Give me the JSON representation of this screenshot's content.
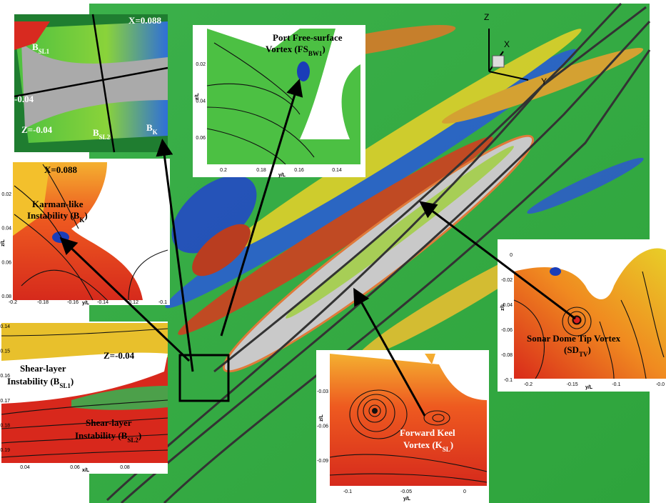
{
  "main": {
    "axes": {
      "z": "Z",
      "x": "X",
      "y": "Y"
    }
  },
  "top_left": {
    "labels": [
      "X=0.088",
      "-0.04",
      "Z=-0.04"
    ],
    "vortices": [
      {
        "text": "B",
        "sub": "SL1"
      },
      {
        "text": "B",
        "sub": "SL2"
      },
      {
        "text": "B",
        "sub": "K"
      }
    ]
  },
  "top_middle": {
    "title": "Port Free-surface",
    "vortex": {
      "text": "Vortex (FS",
      "sub": "BW1",
      "tail": ")"
    },
    "ylabel": "z/L",
    "xlabel": "y/L",
    "yticks": [
      "0.02",
      "0.04",
      "0.06"
    ],
    "xticks": [
      "0.2",
      "0.18",
      "0.16",
      "0.14"
    ]
  },
  "middle_left": {
    "section": "X=0.088",
    "title": "Karman-like",
    "vortex": {
      "text": "Instability (B",
      "sub": "K",
      "tail": ")"
    },
    "ylabel": "z/L",
    "xlabel": "y/L",
    "yticks": [
      "0.02",
      "0.04",
      "0.06",
      "0.08"
    ],
    "xticks": [
      "-0.2",
      "-0.18",
      "-0.16",
      "-0.14",
      "-0.12",
      "-0.1"
    ]
  },
  "bottom_left": {
    "section": "Z=-0.04",
    "title1": "Shear-layer",
    "vortex1": {
      "text": "Instability (B",
      "sub": "SL1",
      "tail": ")"
    },
    "title2": "Shear-layer",
    "vortex2": {
      "text": "Instability (B",
      "sub": "SL2",
      "tail": ")"
    },
    "xlabel": "x/L",
    "yticks": [
      "0.14",
      "0.15",
      "0.16",
      "0.17",
      "0.18",
      "0.19"
    ],
    "xticks": [
      "0.04",
      "0.06",
      "0.08"
    ]
  },
  "bottom_middle": {
    "title": "Forward Keel",
    "vortex": {
      "text": "Vortex (K",
      "sub": "SL",
      "tail": ")"
    },
    "ylabel": "z/L",
    "xlabel": "y/L",
    "yticks": [
      "-0.03",
      "-0.06",
      "-0.09"
    ],
    "xticks": [
      "-0.1",
      "-0.05",
      "0"
    ]
  },
  "right": {
    "title": "Sonar Dome Tip Vortex",
    "vortex": {
      "text": "(SD",
      "sub": "TV",
      "tail": ")"
    },
    "ylabel": "z/L",
    "xlabel": "y/L",
    "yticks": [
      "0",
      "-0.02",
      "-0.04",
      "-0.06",
      "-0.08",
      "-0.1"
    ],
    "xticks": [
      "-0.2",
      "-0.15",
      "-0.1",
      "-0.0"
    ]
  }
}
